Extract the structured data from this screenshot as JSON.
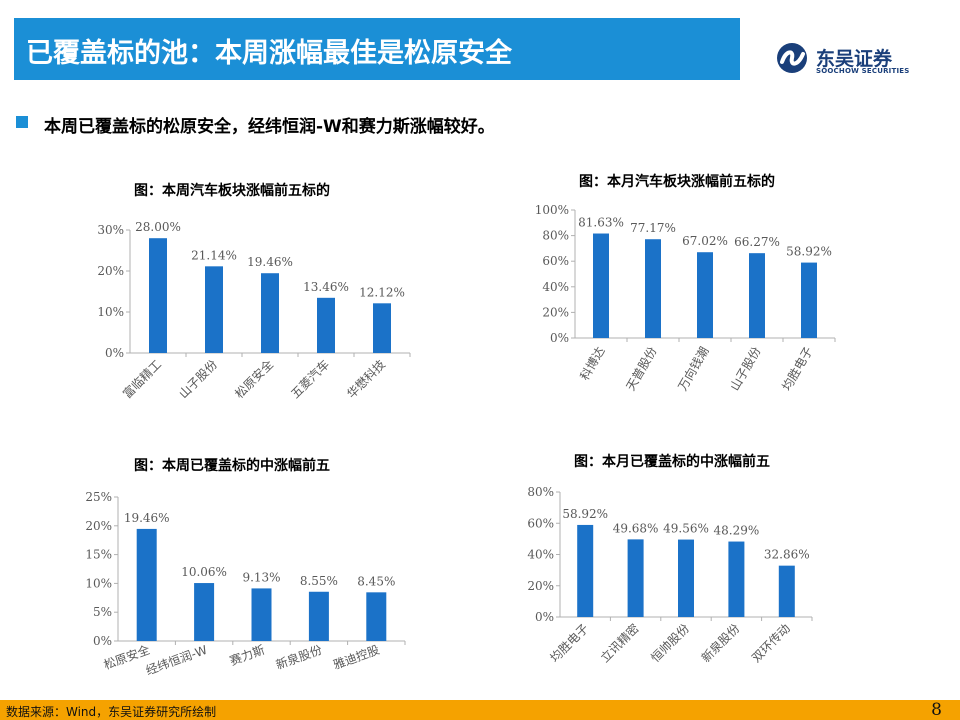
{
  "header": {
    "title": "已覆盖标的池：本周涨幅最佳是松原安全",
    "logo_cn": "东吴证券",
    "logo_en": "SOOCHOW SECURITIES",
    "accent_color": "#1b8fd6",
    "logo_color": "#1a3f7a"
  },
  "bullet": "本周已覆盖标的松原安全，经纬恒润-W和赛力斯涨幅较好。",
  "chart_data": [
    {
      "type": "bar",
      "title": "图：本周汽车板块涨幅前五标的",
      "categories": [
        "富临精工",
        "山子股份",
        "松原安全",
        "五菱汽车",
        "华懋科技"
      ],
      "values": [
        28.0,
        21.14,
        19.46,
        13.46,
        12.12
      ],
      "data_labels": [
        "28.00%",
        "21.14%",
        "19.46%",
        "13.46%",
        "12.12%"
      ],
      "ylim": [
        0,
        30
      ],
      "yticks": [
        "0%",
        "10%",
        "20%",
        "30%"
      ],
      "grid": false,
      "bar_color": "#1b72c8"
    },
    {
      "type": "bar",
      "title": "图：本月汽车板块涨幅前五标的",
      "categories": [
        "科博达",
        "天普股份",
        "万向钱潮",
        "山子股份",
        "均胜电子"
      ],
      "values": [
        81.63,
        77.17,
        67.02,
        66.27,
        58.92
      ],
      "data_labels": [
        "81.63%",
        "77.17%",
        "67.02%",
        "66.27%",
        "58.92%"
      ],
      "ylim": [
        0,
        100
      ],
      "yticks": [
        "0%",
        "20%",
        "40%",
        "60%",
        "80%",
        "100%"
      ],
      "grid": false,
      "bar_color": "#1b72c8"
    },
    {
      "type": "bar",
      "title": "图：本周已覆盖标的中涨幅前五",
      "categories": [
        "松原安全",
        "经纬恒润-W",
        "赛力斯",
        "新泉股份",
        "雅迪控股"
      ],
      "values": [
        19.46,
        10.06,
        9.13,
        8.55,
        8.45
      ],
      "data_labels": [
        "19.46%",
        "10.06%",
        "9.13%",
        "8.55%",
        "8.45%"
      ],
      "ylim": [
        0,
        25
      ],
      "yticks": [
        "0%",
        "5%",
        "10%",
        "15%",
        "20%",
        "25%"
      ],
      "grid": false,
      "bar_color": "#1b72c8"
    },
    {
      "type": "bar",
      "title": "图：本月已覆盖标的中涨幅前五",
      "categories": [
        "均胜电子",
        "立讯精密",
        "恒帅股份",
        "新泉股份",
        "双环传动"
      ],
      "values": [
        58.92,
        49.68,
        49.56,
        48.29,
        32.86
      ],
      "data_labels": [
        "58.92%",
        "49.68%",
        "49.56%",
        "48.29%",
        "32.86%"
      ],
      "ylim": [
        0,
        80
      ],
      "yticks": [
        "0%",
        "20%",
        "40%",
        "60%",
        "80%"
      ],
      "grid": false,
      "bar_color": "#1b72c8"
    }
  ],
  "footer": {
    "source": "数据来源：Wind，东吴证券研究所绘制",
    "page_number": "8",
    "bar_color": "#f5a200"
  }
}
